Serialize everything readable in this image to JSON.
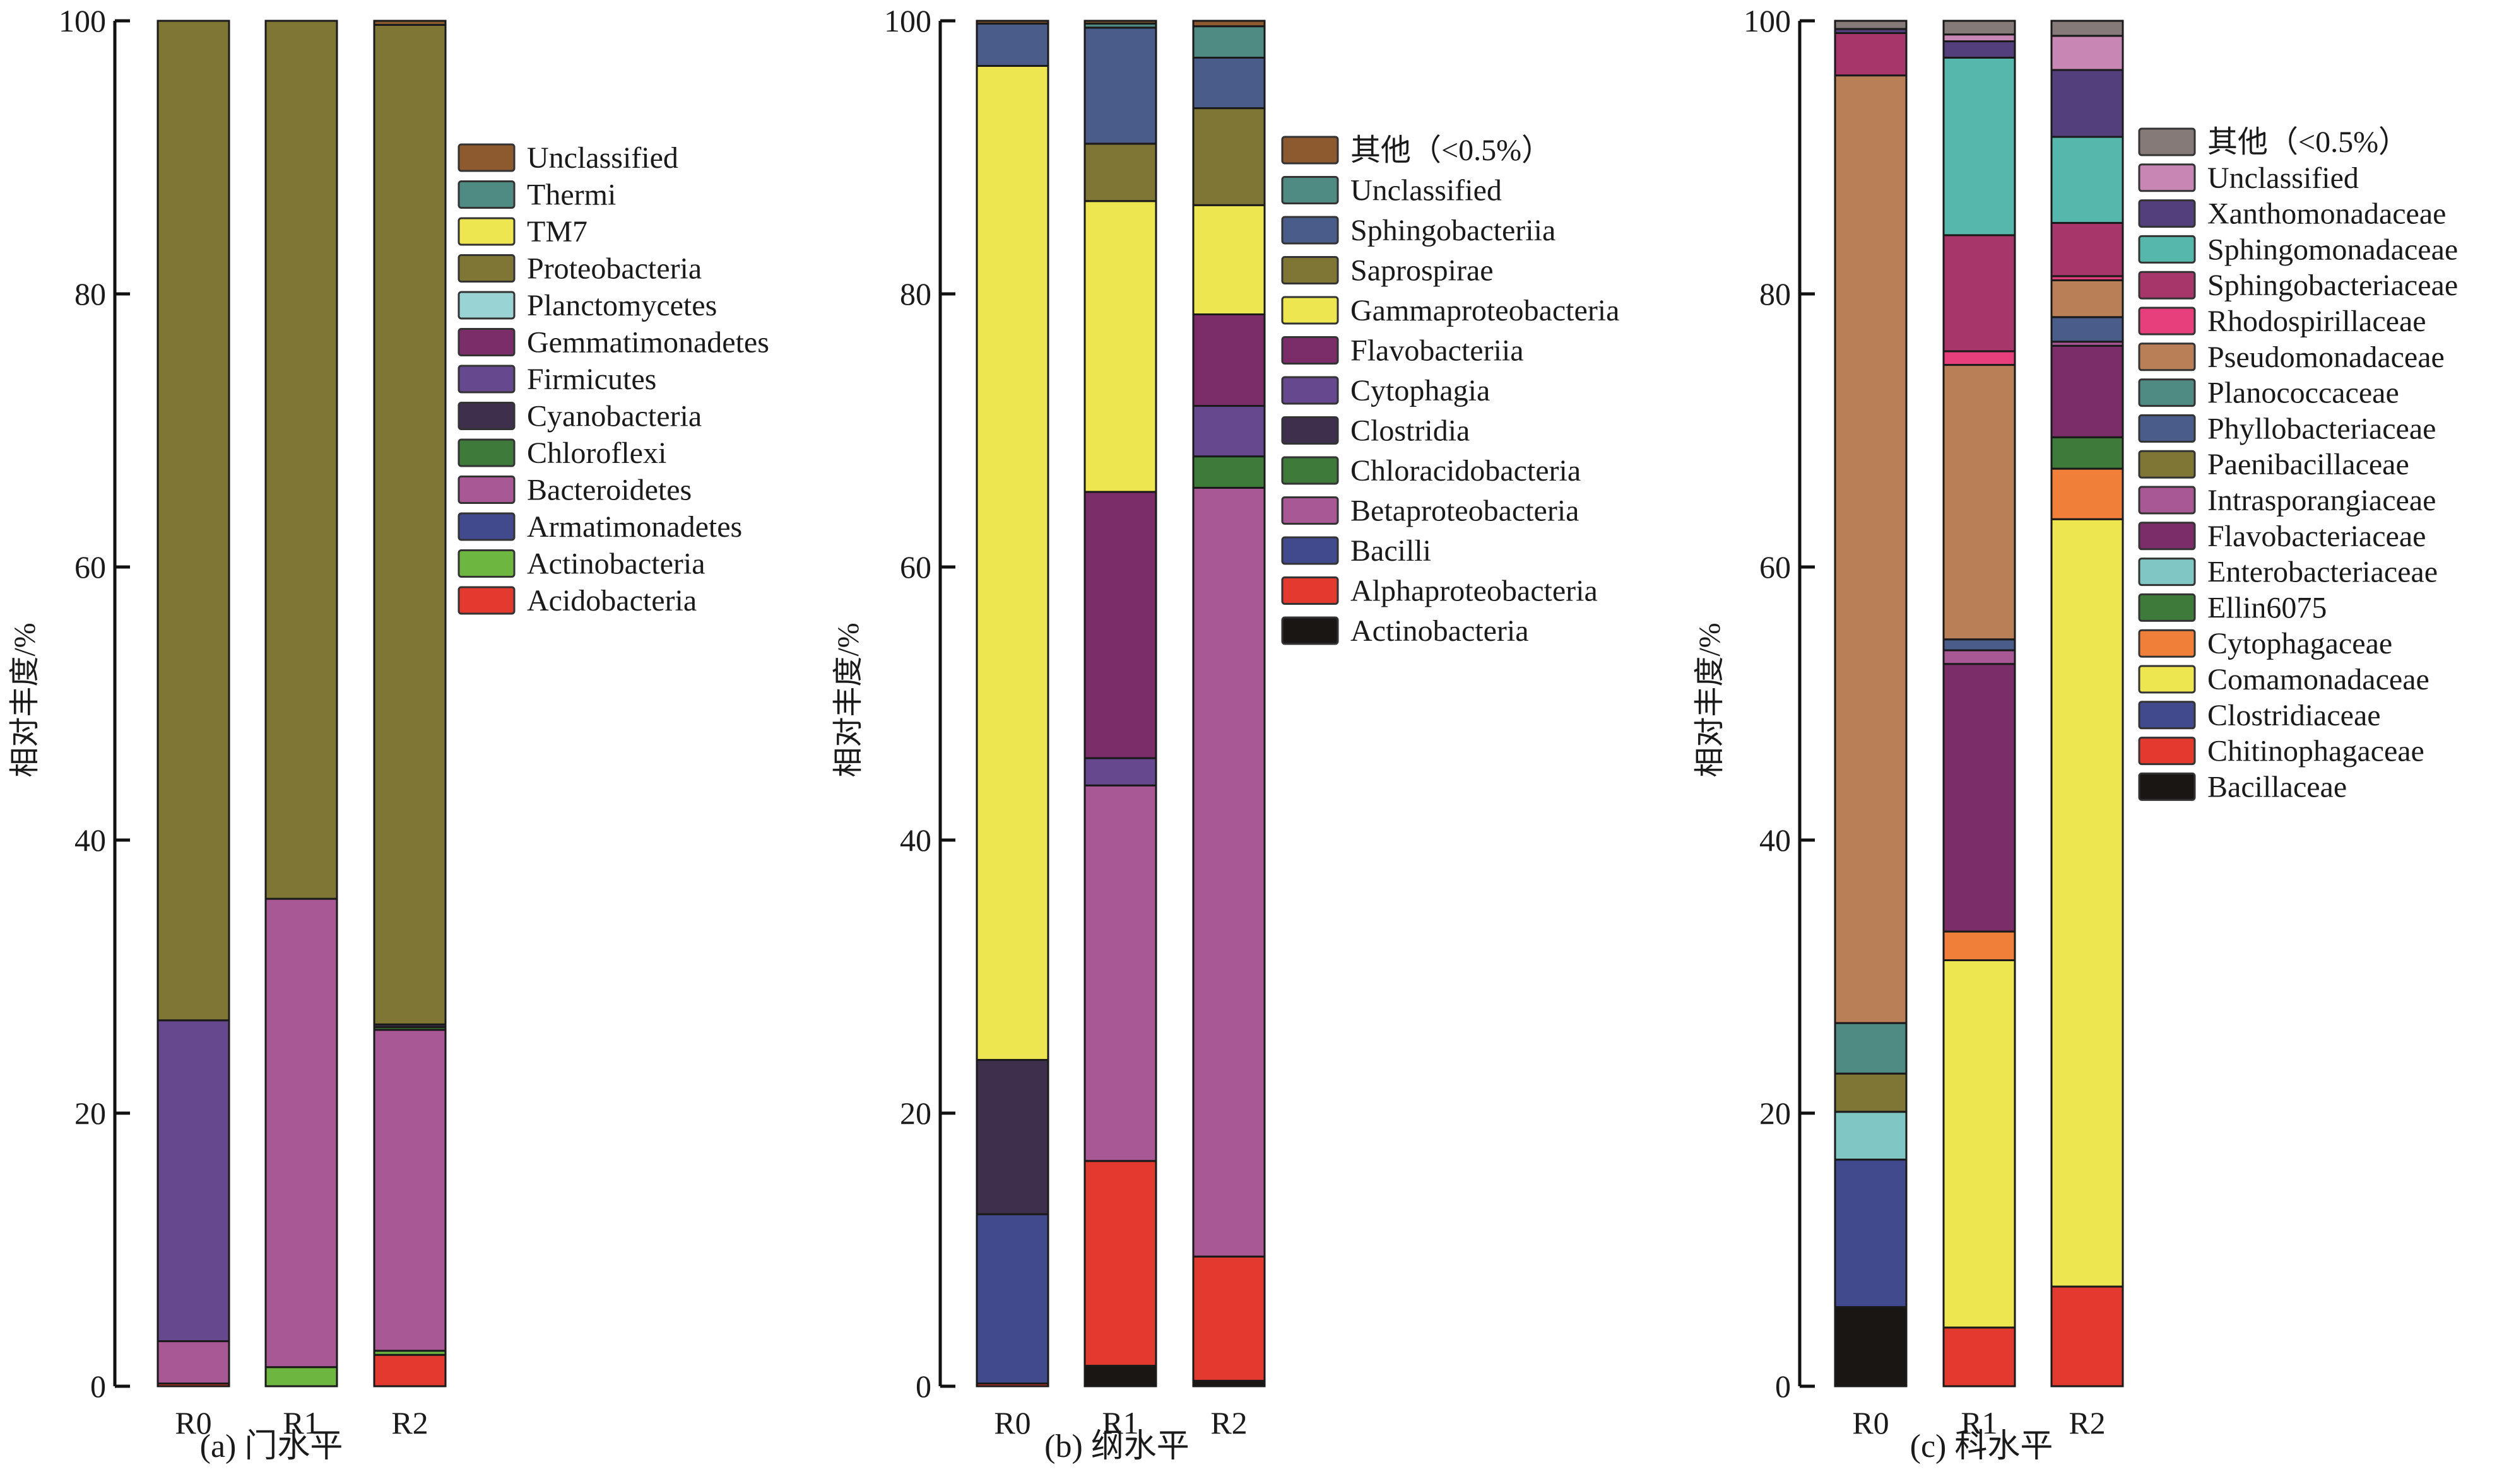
{
  "chart_data": [
    {
      "type": "bar",
      "stacked": true,
      "caption": "(a) 门水平",
      "ylabel": "相对丰度/%",
      "xlabel": "",
      "ylim": [
        0,
        100
      ],
      "yticks": [
        0,
        20,
        40,
        60,
        80,
        100
      ],
      "categories": [
        "R0",
        "R1",
        "R2"
      ],
      "legend_position": "right",
      "legend": [
        "Unclassified",
        "Thermi",
        "TM7",
        "Proteobacteria",
        "Planctomycetes",
        "Gemmatimonadetes",
        "Firmicutes",
        "Cyanobacteria",
        "Chloroflexi",
        "Bacteroidetes",
        "Armatimonadetes",
        "Actinobacteria",
        "Acidobacteria"
      ],
      "series": [
        {
          "name": "Acidobacteria",
          "color": "#e33a2f",
          "values": [
            0.2,
            0.0,
            2.3
          ]
        },
        {
          "name": "Actinobacteria",
          "color": "#6db63f",
          "values": [
            0.0,
            1.4,
            0.3
          ]
        },
        {
          "name": "Armatimonadetes",
          "color": "#424a8e",
          "values": [
            0.0,
            0.0,
            0.0
          ]
        },
        {
          "name": "Bacteroidetes",
          "color": "#a85895",
          "values": [
            3.1,
            34.3,
            23.5
          ]
        },
        {
          "name": "Chloroflexi",
          "color": "#3e7a3a",
          "values": [
            0.0,
            0.0,
            0.2
          ]
        },
        {
          "name": "Cyanobacteria",
          "color": "#3e2f4c",
          "values": [
            0.0,
            0.0,
            0.2
          ]
        },
        {
          "name": "Firmicutes",
          "color": "#66488e",
          "values": [
            23.5,
            0.0,
            0.0
          ]
        },
        {
          "name": "Gemmatimonadetes",
          "color": "#7a2d68",
          "values": [
            0.0,
            0.0,
            0.0
          ]
        },
        {
          "name": "Planctomycetes",
          "color": "#99d3d3",
          "values": [
            0.0,
            0.0,
            0.0
          ]
        },
        {
          "name": "Proteobacteria",
          "color": "#7f7636",
          "values": [
            73.2,
            64.3,
            73.2
          ]
        },
        {
          "name": "TM7",
          "color": "#ede651",
          "values": [
            0.0,
            0.0,
            0.0
          ]
        },
        {
          "name": "Thermi",
          "color": "#4f8b83",
          "values": [
            0.0,
            0.0,
            0.0
          ]
        },
        {
          "name": "Unclassified",
          "color": "#8c5a2e",
          "values": [
            0.0,
            0.0,
            0.3
          ]
        }
      ]
    },
    {
      "type": "bar",
      "stacked": true,
      "caption": "(b) 纲水平",
      "ylabel": "相对丰度/%",
      "xlabel": "",
      "ylim": [
        0,
        100
      ],
      "yticks": [
        0,
        20,
        40,
        60,
        80,
        100
      ],
      "categories": [
        "R0",
        "R1",
        "R2"
      ],
      "legend_position": "right",
      "legend": [
        "其他（<0.5%）",
        "Unclassified",
        "Sphingobacteriia",
        "Saprospirae",
        "Gammaproteobacteria",
        "Flavobacteriia",
        "Cytophagia",
        "Clostridia",
        "Chloracidobacteria",
        "Betaproteobacteria",
        "Bacilli",
        "Alphaproteobacteria",
        "Actinobacteria"
      ],
      "series": [
        {
          "name": "Actinobacteria",
          "color": "#1a1614",
          "values": [
            0.0,
            1.5,
            0.4
          ]
        },
        {
          "name": "Alphaproteobacteria",
          "color": "#e33a2f",
          "values": [
            0.2,
            15.0,
            9.1
          ]
        },
        {
          "name": "Bacilli",
          "color": "#424a8e",
          "values": [
            12.4,
            0.0,
            0.0
          ]
        },
        {
          "name": "Betaproteobacteria",
          "color": "#a85895",
          "values": [
            0.0,
            27.5,
            56.3
          ]
        },
        {
          "name": "Chloracidobacteria",
          "color": "#3e7a3a",
          "values": [
            0.0,
            0.0,
            2.3
          ]
        },
        {
          "name": "Clostridia",
          "color": "#3e2f4c",
          "values": [
            11.3,
            0.0,
            0.0
          ]
        },
        {
          "name": "Cytophagia",
          "color": "#66488e",
          "values": [
            0.0,
            2.0,
            3.7
          ]
        },
        {
          "name": "Flavobacteriia",
          "color": "#7a2d68",
          "values": [
            0.0,
            19.5,
            6.7
          ]
        },
        {
          "name": "Gammaproteobacteria",
          "color": "#ede651",
          "values": [
            72.8,
            21.3,
            8.0
          ]
        },
        {
          "name": "Saprospirae",
          "color": "#7f7636",
          "values": [
            0.0,
            4.2,
            7.1
          ]
        },
        {
          "name": "Sphingobacteriia",
          "color": "#4a5c8a",
          "values": [
            3.1,
            8.5,
            3.7
          ]
        },
        {
          "name": "Unclassified",
          "color": "#4f8b83",
          "values": [
            0.0,
            0.3,
            2.3
          ]
        },
        {
          "name": "其他（<0.5%）",
          "color": "#8c5a2e",
          "values": [
            0.2,
            0.2,
            0.4
          ]
        }
      ]
    },
    {
      "type": "bar",
      "stacked": true,
      "caption": "(c) 科水平",
      "ylabel": "相对丰度/%",
      "xlabel": "",
      "ylim": [
        0,
        100
      ],
      "yticks": [
        0,
        20,
        40,
        60,
        80,
        100
      ],
      "categories": [
        "R0",
        "R1",
        "R2"
      ],
      "legend_position": "right",
      "legend": [
        "其他（<0.5%）",
        "Unclassified",
        "Xanthomonadaceae",
        "Sphingomonadaceae",
        "Sphingobacteriaceae",
        "Rhodospirillaceae",
        "Pseudomonadaceae",
        "Planococcaceae",
        "Phyllobacteriaceae",
        "Paenibacillaceae",
        "Intrasporangiaceae",
        "Flavobacteriaceae",
        "Enterobacteriaceae",
        "Ellin6075",
        "Cytophagaceae",
        "Comamonadaceae",
        "Clostridiaceae",
        "Chitinophagaceae",
        "Bacillaceae"
      ],
      "series": [
        {
          "name": "Bacillaceae",
          "color": "#1a1614",
          "values": [
            5.8,
            0.0,
            0.0
          ]
        },
        {
          "name": "Chitinophagaceae",
          "color": "#e33a2f",
          "values": [
            0.0,
            4.3,
            7.3
          ]
        },
        {
          "name": "Clostridiaceae",
          "color": "#424a8e",
          "values": [
            10.8,
            0.0,
            0.0
          ]
        },
        {
          "name": "Comamonadaceae",
          "color": "#ede651",
          "values": [
            0.0,
            26.9,
            56.2
          ]
        },
        {
          "name": "Cytophagaceae",
          "color": "#f07f3a",
          "values": [
            0.0,
            2.1,
            3.7
          ]
        },
        {
          "name": "Ellin6075",
          "color": "#3e7a3a",
          "values": [
            0.0,
            0.0,
            2.3
          ]
        },
        {
          "name": "Enterobacteriaceae",
          "color": "#7fc6c4",
          "values": [
            3.5,
            0.0,
            0.0
          ]
        },
        {
          "name": "Flavobacteriaceae",
          "color": "#7a2d68",
          "values": [
            0.0,
            19.6,
            6.7
          ]
        },
        {
          "name": "Intrasporangiaceae",
          "color": "#a85895",
          "values": [
            0.0,
            1.0,
            0.3
          ]
        },
        {
          "name": "Paenibacillaceae",
          "color": "#7f7636",
          "values": [
            2.8,
            0.0,
            0.0
          ]
        },
        {
          "name": "Phyllobacteriaceae",
          "color": "#4a5c8a",
          "values": [
            0.0,
            0.8,
            1.8
          ]
        },
        {
          "name": "Planococcaceae",
          "color": "#4f8b83",
          "values": [
            3.7,
            0.0,
            0.0
          ]
        },
        {
          "name": "Pseudomonadaceae",
          "color": "#b97f57",
          "values": [
            69.4,
            20.1,
            2.7
          ]
        },
        {
          "name": "Rhodospirillaceae",
          "color": "#e73f7b",
          "values": [
            0.0,
            1.0,
            0.3
          ]
        },
        {
          "name": "Sphingobacteriaceae",
          "color": "#a7366b",
          "values": [
            3.1,
            8.5,
            3.9
          ]
        },
        {
          "name": "Sphingomonadaceae",
          "color": "#56b7ad",
          "values": [
            0.0,
            13.0,
            6.3
          ]
        },
        {
          "name": "Xanthomonadaceae",
          "color": "#533f7c",
          "values": [
            0.3,
            1.2,
            4.9
          ]
        },
        {
          "name": "Unclassified",
          "color": "#c886b4",
          "values": [
            0.0,
            0.5,
            2.5
          ]
        },
        {
          "name": "其他（<0.5%）",
          "color": "#857a78",
          "values": [
            0.6,
            1.0,
            1.1
          ]
        }
      ]
    }
  ]
}
